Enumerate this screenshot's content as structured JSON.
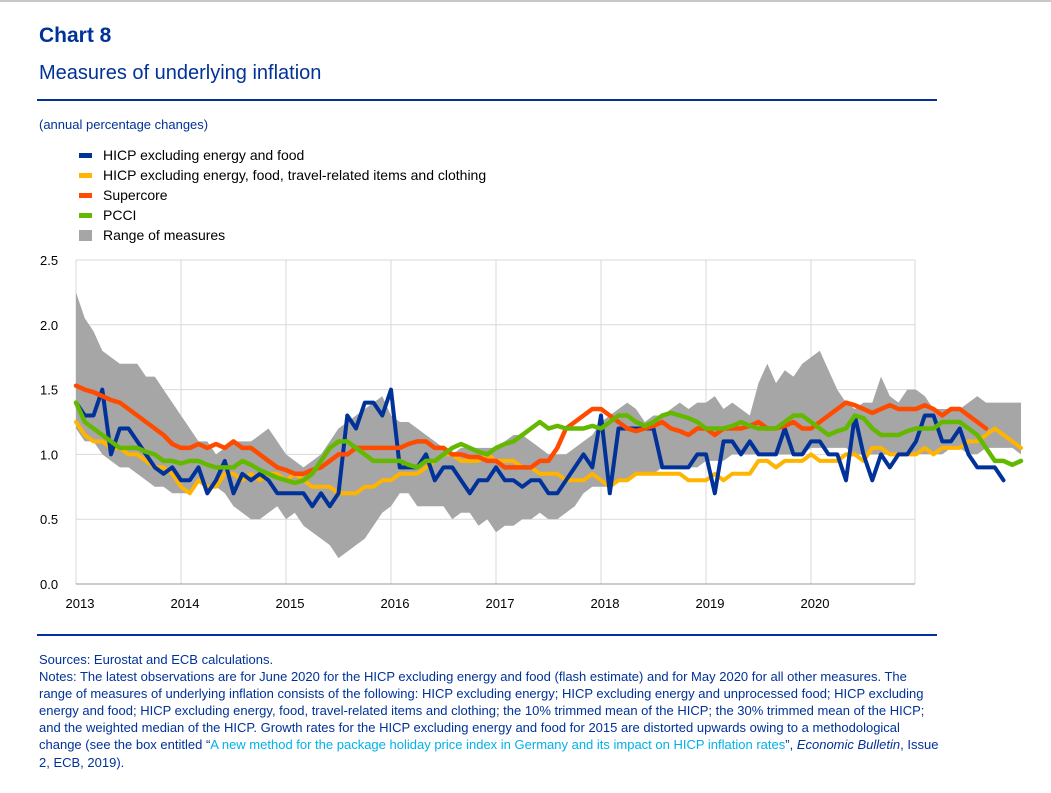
{
  "header": {
    "chart_number": "Chart 8",
    "title": "Measures of underlying inflation",
    "units": "(annual percentage changes)"
  },
  "footer": {
    "sources": "Sources: Eurostat and ECB calculations.",
    "notes_main": "Notes: The latest observations are for June 2020 for the HICP excluding energy and food (flash estimate) and for May 2020 for all other measures. The range of measures of underlying inflation consists of the following: HICP excluding energy; HICP excluding energy and unprocessed food; HICP excluding energy and food; HICP excluding energy, food, travel-related items and clothing; the 10% trimmed mean of the HICP; the 30% trimmed mean of the HICP; and the weighted median of the HICP. Growth rates for the HICP excluding energy and food for 2015 are distorted upwards owing to a methodological change (see the box entitled “",
    "notes_link": "A new method for the package holiday price index in Germany and its impact on HICP inflation rates",
    "notes_mid": "”, ",
    "notes_pub": "Economic Bulletin",
    "notes_end": ", Issue 2, ECB, 2019)."
  },
  "colors": {
    "brand": "#003299",
    "link": "#00b1ea",
    "range": "#a6a6a6"
  },
  "chart_data": {
    "type": "line",
    "title": "Measures of underlying inflation",
    "subtitle": "(annual percentage changes)",
    "x_tick_labels": [
      "2013",
      "2014",
      "2015",
      "2016",
      "2017",
      "2018",
      "2019",
      "2020"
    ],
    "y_tick_labels": [
      "0.0",
      "0.5",
      "1.0",
      "1.5",
      "2.0",
      "2.5"
    ],
    "ylim": [
      0,
      2.5
    ],
    "x_start": "2013-01",
    "grid": true,
    "legend_position": "top-left",
    "range_band": {
      "name": "Range of measures",
      "color": "#a6a6a6",
      "upper": [
        2.25,
        2.05,
        1.95,
        1.8,
        1.75,
        1.7,
        1.7,
        1.7,
        1.6,
        1.6,
        1.5,
        1.4,
        1.3,
        1.2,
        1.1,
        1.1,
        1.0,
        1.05,
        1.1,
        1.1,
        1.1,
        1.15,
        1.2,
        1.1,
        1.0,
        0.95,
        0.9,
        0.95,
        1.0,
        1.1,
        1.2,
        1.25,
        1.3,
        1.35,
        1.4,
        1.45,
        1.3,
        1.25,
        1.25,
        1.2,
        1.15,
        1.1,
        1.05,
        1.0,
        1.05,
        1.05,
        1.05,
        1.05,
        1.05,
        1.1,
        1.15,
        1.15,
        1.1,
        1.05,
        1.0,
        1.0,
        1.0,
        1.05,
        1.1,
        1.15,
        1.25,
        1.3,
        1.35,
        1.4,
        1.35,
        1.25,
        1.3,
        1.3,
        1.35,
        1.4,
        1.35,
        1.4,
        1.4,
        1.45,
        1.35,
        1.4,
        1.35,
        1.3,
        1.55,
        1.7,
        1.55,
        1.65,
        1.6,
        1.7,
        1.75,
        1.8,
        1.65,
        1.5,
        1.4,
        1.35,
        1.4,
        1.4,
        1.6,
        1.45,
        1.4,
        1.5,
        1.5,
        1.45,
        1.35,
        1.35,
        1.35,
        1.35,
        1.4,
        1.45,
        1.4,
        1.4,
        1.4,
        1.4,
        1.4
      ],
      "lower": [
        1.2,
        1.1,
        1.1,
        1.0,
        0.95,
        0.9,
        0.9,
        0.85,
        0.8,
        0.75,
        0.75,
        0.7,
        0.7,
        0.7,
        0.8,
        0.75,
        0.75,
        0.7,
        0.6,
        0.55,
        0.5,
        0.5,
        0.55,
        0.6,
        0.5,
        0.55,
        0.45,
        0.4,
        0.35,
        0.3,
        0.2,
        0.25,
        0.3,
        0.35,
        0.45,
        0.55,
        0.6,
        0.7,
        0.7,
        0.6,
        0.6,
        0.6,
        0.6,
        0.5,
        0.55,
        0.55,
        0.45,
        0.5,
        0.4,
        0.45,
        0.45,
        0.5,
        0.5,
        0.55,
        0.5,
        0.5,
        0.55,
        0.6,
        0.7,
        0.75,
        0.75,
        0.75,
        0.8,
        0.8,
        0.85,
        0.85,
        0.85,
        0.9,
        0.9,
        0.9,
        0.9,
        0.9,
        0.95,
        0.95,
        0.95,
        1.0,
        1.0,
        1.0,
        1.0,
        1.0,
        1.0,
        1.0,
        1.0,
        1.0,
        1.05,
        1.05,
        1.05,
        1.05,
        1.05,
        1.0,
        1.0,
        1.0,
        1.0,
        1.0,
        1.0,
        1.0,
        1.0,
        1.0,
        1.0,
        1.0,
        1.05,
        1.05,
        1.0,
        1.0,
        1.05,
        1.05,
        1.05,
        1.05,
        1.0
      ]
    },
    "series": [
      {
        "name": "HICP excluding energy, food, travel-related items and clothing",
        "color": "#ffb400",
        "values": [
          1.25,
          1.15,
          1.1,
          1.1,
          1.05,
          1.05,
          1.0,
          1.0,
          0.95,
          0.9,
          0.9,
          0.85,
          0.75,
          0.7,
          0.8,
          0.75,
          0.75,
          0.85,
          0.85,
          0.8,
          0.85,
          0.8,
          0.85,
          0.85,
          0.8,
          0.85,
          0.8,
          0.75,
          0.75,
          0.75,
          0.7,
          0.7,
          0.7,
          0.75,
          0.75,
          0.8,
          0.8,
          0.85,
          0.85,
          0.85,
          0.9,
          0.95,
          1.0,
          1.0,
          0.95,
          0.95,
          0.95,
          1.0,
          0.95,
          0.95,
          0.95,
          0.9,
          0.9,
          0.85,
          0.85,
          0.85,
          0.8,
          0.8,
          0.8,
          0.85,
          0.8,
          0.75,
          0.8,
          0.8,
          0.85,
          0.85,
          0.85,
          0.85,
          0.85,
          0.85,
          0.8,
          0.8,
          0.8,
          0.85,
          0.8,
          0.85,
          0.85,
          0.85,
          0.95,
          0.95,
          0.9,
          0.95,
          0.95,
          0.95,
          1.0,
          0.95,
          0.95,
          0.95,
          1.0,
          1.0,
          0.95,
          1.05,
          1.05,
          1.0,
          1.0,
          1.0,
          1.0,
          1.05,
          1.0,
          1.05,
          1.05,
          1.05,
          1.1,
          1.1,
          1.15,
          1.2,
          1.15,
          1.1,
          1.05
        ]
      },
      {
        "name": "HICP excluding energy and food",
        "color": "#003299",
        "values": [
          1.4,
          1.3,
          1.3,
          1.5,
          1.0,
          1.2,
          1.2,
          1.1,
          1.0,
          0.9,
          0.85,
          0.9,
          0.8,
          0.8,
          0.9,
          0.7,
          0.8,
          0.95,
          0.7,
          0.85,
          0.8,
          0.85,
          0.8,
          0.7,
          0.7,
          0.7,
          0.7,
          0.6,
          0.7,
          0.6,
          0.7,
          1.3,
          1.2,
          1.4,
          1.4,
          1.3,
          1.5,
          0.9,
          0.9,
          0.9,
          1.0,
          0.8,
          0.9,
          0.9,
          0.8,
          0.7,
          0.8,
          0.8,
          0.9,
          0.8,
          0.8,
          0.75,
          0.8,
          0.8,
          0.7,
          0.7,
          0.8,
          0.9,
          1.0,
          0.9,
          1.3,
          0.7,
          1.2,
          1.2,
          1.2,
          1.2,
          1.2,
          0.9,
          0.9,
          0.9,
          0.9,
          1.0,
          1.0,
          0.7,
          1.1,
          1.1,
          1.0,
          1.1,
          1.0,
          1.0,
          1.0,
          1.2,
          1.0,
          1.0,
          1.1,
          1.1,
          1.0,
          1.0,
          0.8,
          1.3,
          1.0,
          0.8,
          1.0,
          0.9,
          1.0,
          1.0,
          1.1,
          1.3,
          1.3,
          1.1,
          1.1,
          1.2,
          1.0,
          0.9,
          0.9,
          0.9,
          0.8
        ]
      },
      {
        "name": "Supercore",
        "color": "#ff4b00",
        "values": [
          1.53,
          1.5,
          1.48,
          1.45,
          1.42,
          1.4,
          1.35,
          1.3,
          1.25,
          1.2,
          1.15,
          1.08,
          1.05,
          1.05,
          1.08,
          1.05,
          1.08,
          1.05,
          1.1,
          1.05,
          1.05,
          1.0,
          0.95,
          0.9,
          0.88,
          0.85,
          0.85,
          0.88,
          0.9,
          0.95,
          1.0,
          1.0,
          1.05,
          1.05,
          1.05,
          1.05,
          1.05,
          1.05,
          1.08,
          1.1,
          1.1,
          1.05,
          1.05,
          1.0,
          1.0,
          0.98,
          0.98,
          0.95,
          0.95,
          0.9,
          0.9,
          0.9,
          0.9,
          0.95,
          0.95,
          1.05,
          1.2,
          1.25,
          1.3,
          1.35,
          1.35,
          1.3,
          1.25,
          1.2,
          1.18,
          1.2,
          1.22,
          1.25,
          1.2,
          1.18,
          1.15,
          1.2,
          1.2,
          1.15,
          1.2,
          1.2,
          1.2,
          1.22,
          1.25,
          1.2,
          1.2,
          1.22,
          1.25,
          1.2,
          1.2,
          1.25,
          1.3,
          1.35,
          1.4,
          1.38,
          1.35,
          1.32,
          1.35,
          1.38,
          1.35,
          1.35,
          1.35,
          1.38,
          1.35,
          1.3,
          1.35,
          1.35,
          1.3,
          1.25,
          1.2
        ]
      },
      {
        "name": "PCCI",
        "color": "#65b800",
        "values": [
          1.4,
          1.25,
          1.2,
          1.15,
          1.1,
          1.05,
          1.05,
          1.05,
          1.02,
          1.0,
          0.95,
          0.95,
          0.93,
          0.95,
          0.95,
          0.92,
          0.9,
          0.9,
          0.9,
          0.95,
          0.92,
          0.88,
          0.85,
          0.82,
          0.8,
          0.78,
          0.8,
          0.85,
          0.95,
          1.05,
          1.1,
          1.1,
          1.05,
          1.0,
          0.95,
          0.95,
          0.95,
          0.95,
          0.92,
          0.9,
          0.95,
          0.95,
          1.0,
          1.05,
          1.08,
          1.05,
          1.02,
          1.0,
          1.05,
          1.08,
          1.1,
          1.15,
          1.2,
          1.25,
          1.2,
          1.22,
          1.2,
          1.2,
          1.2,
          1.22,
          1.2,
          1.25,
          1.3,
          1.3,
          1.25,
          1.22,
          1.25,
          1.3,
          1.32,
          1.3,
          1.28,
          1.25,
          1.2,
          1.2,
          1.2,
          1.22,
          1.25,
          1.22,
          1.2,
          1.2,
          1.2,
          1.25,
          1.3,
          1.3,
          1.25,
          1.2,
          1.15,
          1.18,
          1.2,
          1.3,
          1.28,
          1.2,
          1.15,
          1.15,
          1.15,
          1.18,
          1.2,
          1.2,
          1.2,
          1.25,
          1.25,
          1.25,
          1.2,
          1.15,
          1.05,
          0.95,
          0.95,
          0.92,
          0.95
        ]
      }
    ]
  }
}
